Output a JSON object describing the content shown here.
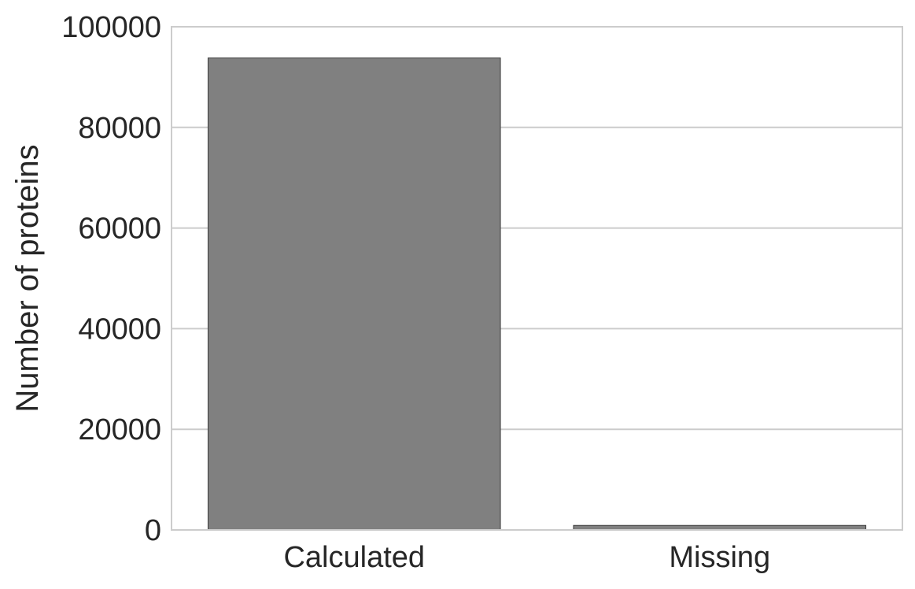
{
  "chart_data": {
    "type": "bar",
    "title": "",
    "xlabel": "",
    "ylabel": "Number of proteins",
    "categories": [
      "Calculated",
      "Missing"
    ],
    "values": [
      93800,
      900
    ],
    "ylim": [
      0,
      100000
    ],
    "yticks": [
      0,
      20000,
      40000,
      60000,
      80000,
      100000
    ],
    "ytick_labels": [
      "0",
      "20000",
      "40000",
      "60000",
      "80000",
      "100000"
    ],
    "grid": "horizontal",
    "colors": {
      "bar_fill": "#808080",
      "bar_edge": "#3c3c3c",
      "grid": "#cccccc",
      "frame": "#cccccc",
      "text": "#262626",
      "background": "#ffffff"
    }
  }
}
